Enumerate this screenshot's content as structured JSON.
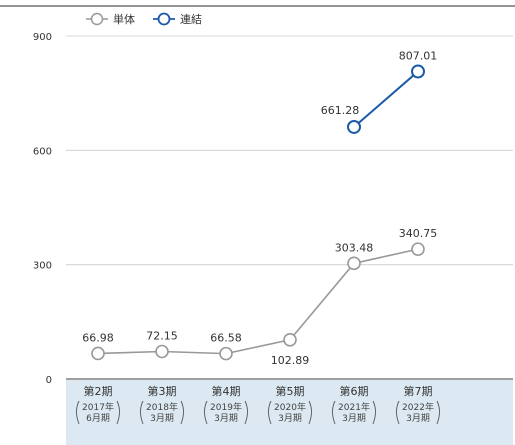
{
  "chart_data": {
    "type": "line",
    "categories": [
      {
        "label": "第2期",
        "period_year": "2017年",
        "period_month": "6月期"
      },
      {
        "label": "第3期",
        "period_year": "2018年",
        "period_month": "3月期"
      },
      {
        "label": "第4期",
        "period_year": "2019年",
        "period_month": "3月期"
      },
      {
        "label": "第5期",
        "period_year": "2020年",
        "period_month": "3月期"
      },
      {
        "label": "第6期",
        "period_year": "2021年",
        "period_month": "3月期"
      },
      {
        "label": "第7期",
        "period_year": "2022年",
        "period_month": "3月期"
      }
    ],
    "series": [
      {
        "name": "単体",
        "color": "#999999",
        "values": [
          66.98,
          72.15,
          66.58,
          102.89,
          303.48,
          340.75
        ],
        "labels": [
          "66.98",
          "72.15",
          "66.58",
          "102.89",
          "303.48",
          "340.75"
        ]
      },
      {
        "name": "連結",
        "color": "#1a5aa8",
        "values": [
          null,
          null,
          null,
          null,
          661.28,
          807.01
        ],
        "labels": [
          "",
          "",
          "",
          "",
          "661.28",
          "807.01"
        ]
      }
    ],
    "yticks": [
      "0",
      "300",
      "600",
      "900"
    ],
    "ylim": [
      0,
      900
    ],
    "grid": true,
    "legend": "top-left",
    "band_color": "#dce9f2"
  }
}
